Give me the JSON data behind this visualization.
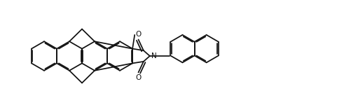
{
  "bg": "#ffffff",
  "lc": "#111111",
  "lw": 1.25,
  "dbo": 0.009,
  "figsize": [
    5.02,
    1.6
  ],
  "dpi": 100,
  "N_label": "N",
  "O_label": "O",
  "fontsize": 7.5
}
